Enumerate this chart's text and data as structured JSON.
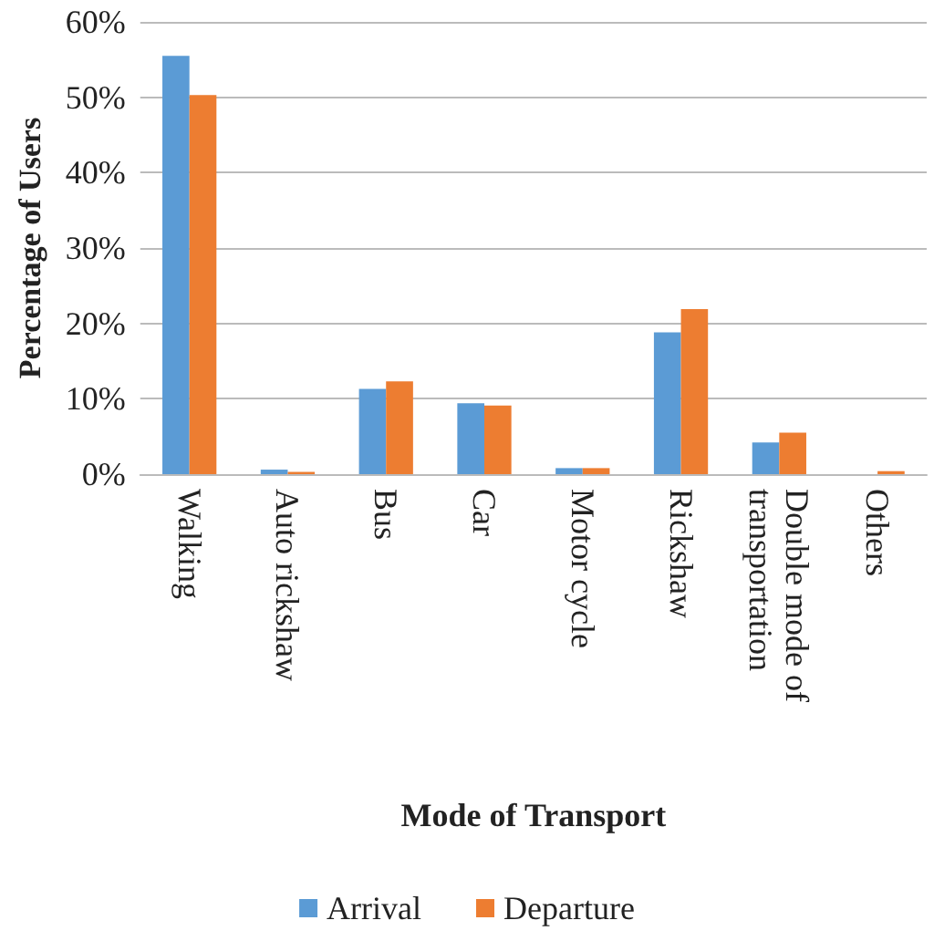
{
  "chart_data": {
    "type": "bar",
    "xlabel": "Mode of Transport",
    "ylabel": "Percentage of Users",
    "categories": [
      "Walking",
      "Auto rickshaw",
      "Bus",
      "Car",
      "Motor cycle",
      "Rickshaw",
      "Double mode of transportation",
      "Others"
    ],
    "series": [
      {
        "name": "Arrival",
        "color": "#5b9bd5",
        "values": [
          55.5,
          0.6,
          11.3,
          9.4,
          0.8,
          18.8,
          4.2,
          0
        ]
      },
      {
        "name": "Departure",
        "color": "#ed7d31",
        "values": [
          50.3,
          0.3,
          12.3,
          9.1,
          0.8,
          21.9,
          5.5,
          0.4
        ]
      }
    ],
    "ylim": [
      0,
      60
    ],
    "yticks": [
      {
        "value": 0,
        "label": "0%"
      },
      {
        "value": 10,
        "label": "10%"
      },
      {
        "value": 20,
        "label": "20%"
      },
      {
        "value": 30,
        "label": "30%"
      },
      {
        "value": 40,
        "label": "40%"
      },
      {
        "value": 50,
        "label": "50%"
      },
      {
        "value": 60,
        "label": "60%"
      }
    ],
    "grid": "y",
    "legend": "bottom"
  }
}
